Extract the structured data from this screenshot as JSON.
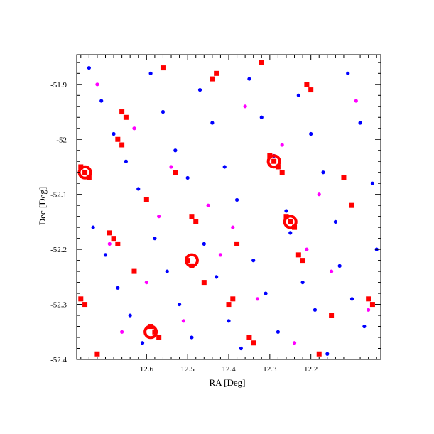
{
  "chart_data": {
    "type": "scatter",
    "title": "",
    "xlabel": "RA [Deg]",
    "ylabel": "Dec [Deg]",
    "x_inverted": true,
    "xlim": [
      12.77,
      12.03
    ],
    "ylim": [
      -52.4,
      -51.846
    ],
    "x_major_ticks": [
      12.6,
      12.5,
      12.4,
      12.3,
      12.2
    ],
    "x_tick_labels": [
      "12.6",
      "12.5",
      "12.4",
      "12.3",
      "12.2"
    ],
    "y_major_ticks": [
      -51.9,
      -52.0,
      -52.1,
      -52.2,
      -52.3,
      -52.4
    ],
    "y_tick_labels": [
      "-51.9",
      "-52",
      "-52.1",
      "-52.2",
      "-52.3",
      "-52.4"
    ],
    "grid": false,
    "legend": "none",
    "series": [
      {
        "color": "#0000ff",
        "marker": "circle",
        "points": [
          [
            12.74,
            -51.87
          ],
          [
            12.71,
            -51.93
          ],
          [
            12.68,
            -51.99
          ],
          [
            12.65,
            -52.04
          ],
          [
            12.62,
            -52.09
          ],
          [
            12.59,
            -51.88
          ],
          [
            12.56,
            -51.95
          ],
          [
            12.53,
            -52.02
          ],
          [
            12.5,
            -52.07
          ],
          [
            12.47,
            -51.91
          ],
          [
            12.44,
            -51.97
          ],
          [
            12.41,
            -52.05
          ],
          [
            12.38,
            -52.11
          ],
          [
            12.35,
            -51.89
          ],
          [
            12.32,
            -51.96
          ],
          [
            12.29,
            -52.03
          ],
          [
            12.26,
            -52.13
          ],
          [
            12.23,
            -51.92
          ],
          [
            12.2,
            -51.99
          ],
          [
            12.17,
            -52.06
          ],
          [
            12.14,
            -52.15
          ],
          [
            12.11,
            -51.88
          ],
          [
            12.08,
            -51.97
          ],
          [
            12.05,
            -52.08
          ],
          [
            12.73,
            -52.16
          ],
          [
            12.7,
            -52.21
          ],
          [
            12.67,
            -52.27
          ],
          [
            12.64,
            -52.32
          ],
          [
            12.61,
            -52.37
          ],
          [
            12.58,
            -52.18
          ],
          [
            12.55,
            -52.24
          ],
          [
            12.52,
            -52.3
          ],
          [
            12.49,
            -52.36
          ],
          [
            12.46,
            -52.19
          ],
          [
            12.43,
            -52.25
          ],
          [
            12.4,
            -52.33
          ],
          [
            12.37,
            -52.38
          ],
          [
            12.34,
            -52.22
          ],
          [
            12.31,
            -52.28
          ],
          [
            12.28,
            -52.35
          ],
          [
            12.25,
            -52.17
          ],
          [
            12.22,
            -52.26
          ],
          [
            12.19,
            -52.31
          ],
          [
            12.16,
            -52.39
          ],
          [
            12.13,
            -52.23
          ],
          [
            12.1,
            -52.29
          ],
          [
            12.07,
            -52.34
          ],
          [
            12.04,
            -52.2
          ]
        ]
      },
      {
        "color": "#ff00ff",
        "marker": "circle",
        "points": [
          [
            12.72,
            -51.9
          ],
          [
            12.63,
            -51.98
          ],
          [
            12.54,
            -52.05
          ],
          [
            12.45,
            -52.12
          ],
          [
            12.36,
            -51.94
          ],
          [
            12.27,
            -52.01
          ],
          [
            12.18,
            -52.1
          ],
          [
            12.09,
            -51.93
          ],
          [
            12.69,
            -52.19
          ],
          [
            12.6,
            -52.26
          ],
          [
            12.51,
            -52.33
          ],
          [
            12.42,
            -52.21
          ],
          [
            12.33,
            -52.29
          ],
          [
            12.24,
            -52.37
          ],
          [
            12.15,
            -52.24
          ],
          [
            12.06,
            -52.31
          ],
          [
            12.57,
            -52.14
          ],
          [
            12.39,
            -52.16
          ],
          [
            12.21,
            -52.2
          ],
          [
            12.66,
            -52.35
          ]
        ]
      },
      {
        "color": "#ff0000",
        "marker": "square",
        "points": [
          [
            12.75,
            -52.06
          ],
          [
            12.74,
            -52.07
          ],
          [
            12.76,
            -52.05
          ],
          [
            12.66,
            -52.01
          ],
          [
            12.67,
            -52.0
          ],
          [
            12.29,
            -52.04
          ],
          [
            12.28,
            -52.05
          ],
          [
            12.3,
            -52.03
          ],
          [
            12.27,
            -52.06
          ],
          [
            12.25,
            -52.15
          ],
          [
            12.24,
            -52.16
          ],
          [
            12.26,
            -52.14
          ],
          [
            12.48,
            -52.15
          ],
          [
            12.49,
            -52.14
          ],
          [
            12.5,
            -52.22
          ],
          [
            12.49,
            -52.23
          ],
          [
            12.68,
            -52.18
          ],
          [
            12.67,
            -52.19
          ],
          [
            12.69,
            -52.17
          ],
          [
            12.58,
            -52.35
          ],
          [
            12.57,
            -52.36
          ],
          [
            12.59,
            -52.34
          ],
          [
            12.39,
            -52.29
          ],
          [
            12.4,
            -52.3
          ],
          [
            12.22,
            -52.22
          ],
          [
            12.23,
            -52.21
          ],
          [
            12.66,
            -51.95
          ],
          [
            12.65,
            -51.96
          ],
          [
            12.44,
            -51.89
          ],
          [
            12.43,
            -51.88
          ],
          [
            12.21,
            -51.9
          ],
          [
            12.2,
            -51.91
          ],
          [
            12.06,
            -52.29
          ],
          [
            12.05,
            -52.3
          ],
          [
            12.76,
            -52.29
          ],
          [
            12.75,
            -52.3
          ],
          [
            12.35,
            -52.36
          ],
          [
            12.34,
            -52.37
          ],
          [
            12.53,
            -52.06
          ],
          [
            12.6,
            -52.11
          ],
          [
            12.12,
            -52.07
          ],
          [
            12.1,
            -52.12
          ],
          [
            12.38,
            -52.19
          ],
          [
            12.15,
            -52.32
          ],
          [
            12.56,
            -51.87
          ],
          [
            12.32,
            -51.86
          ],
          [
            12.72,
            -52.39
          ],
          [
            12.18,
            -52.39
          ],
          [
            12.46,
            -52.26
          ],
          [
            12.63,
            -52.24
          ]
        ]
      },
      {
        "color": "#ff0000",
        "marker": "hollow-circle",
        "points": [
          [
            12.75,
            -52.06
          ],
          [
            12.29,
            -52.04
          ],
          [
            12.25,
            -52.15
          ],
          [
            12.49,
            -52.22
          ],
          [
            12.59,
            -52.35
          ]
        ]
      }
    ]
  }
}
